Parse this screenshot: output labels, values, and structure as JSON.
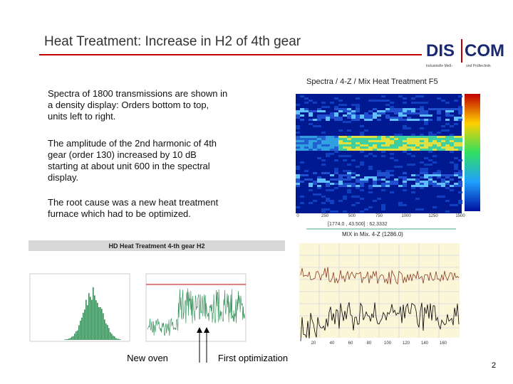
{
  "header": {
    "title": "Heat Treatment: Increase in H2 of 4th gear",
    "logo": {
      "left": "DIS",
      "right": "COM",
      "tagline_left": "Industrielle Meß-",
      "tagline_right": "und Prüftechnik"
    }
  },
  "paragraphs": [
    "Spectra of 1800 transmissions are shown in a density display: Orders bottom to top, units left to right.",
    "The amplitude of the 2nd harmonic of 4th gear (order 130) increased by 10 dB starting at about unit 600 in the spectral display.",
    "The root cause was a new heat treatment furnace which had to be optimized."
  ],
  "spectrogram": {
    "title": "Spectra / 4-Z / Mix Heat Treatment F5",
    "x_ticks": [
      "0",
      "250",
      "500",
      "750",
      "1000",
      "1250",
      "1500"
    ],
    "readout": "[1774.0 , 43.500] : 62.3332",
    "x_label": "MIX in Mix. 4-Z (1286.0)"
  },
  "bottom_chart": {
    "title": "HD Heat Treatment 4-th gear H2"
  },
  "order_chart": {
    "x_ticks": [
      "20",
      "40",
      "60",
      "80",
      "100",
      "120",
      "140",
      "160"
    ]
  },
  "annotations": [
    "New oven",
    "First optimization"
  ],
  "page_number": "2"
}
